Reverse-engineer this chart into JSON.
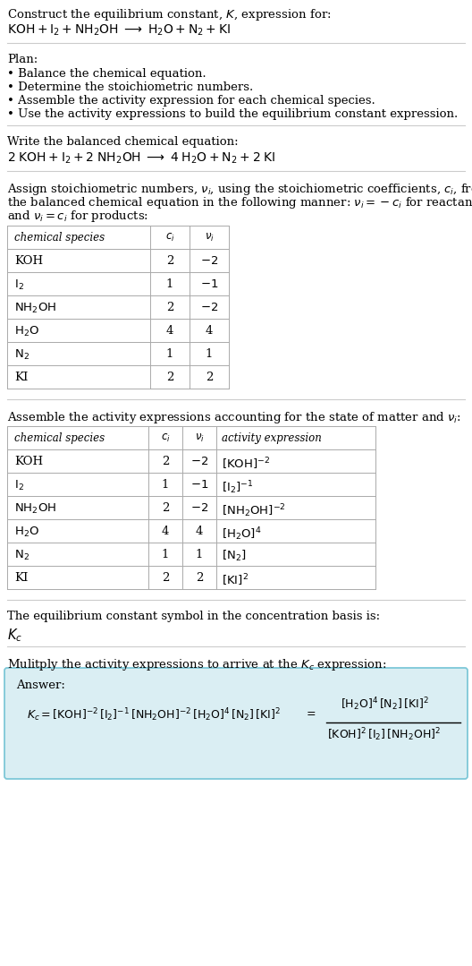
{
  "bg_color": "#ffffff",
  "text_color": "#000000",
  "title_line1": "Construct the equilibrium constant, $K$, expression for:",
  "title_line2": "$\\mathrm{KOH + I_2 + NH_2OH} \\;\\longrightarrow\\; \\mathrm{H_2O + N_2 + KI}$",
  "plan_header": "Plan:",
  "plan_items": [
    "• Balance the chemical equation.",
    "• Determine the stoichiometric numbers.",
    "• Assemble the activity expression for each chemical species.",
    "• Use the activity expressions to build the equilibrium constant expression."
  ],
  "balanced_header": "Write the balanced chemical equation:",
  "balanced_eq": "$\\mathrm{2\\;KOH + I_2 + 2\\;NH_2OH} \\;\\longrightarrow\\; \\mathrm{4\\;H_2O + N_2 + 2\\;KI}$",
  "stoich_lines": [
    "Assign stoichiometric numbers, $\\nu_i$, using the stoichiometric coefficients, $c_i$, from",
    "the balanced chemical equation in the following manner: $\\nu_i = -c_i$ for reactants",
    "and $\\nu_i = c_i$ for products:"
  ],
  "table1_cols": [
    "chemical species",
    "$c_i$",
    "$\\nu_i$"
  ],
  "table1_rows": [
    [
      "KOH",
      "2",
      "$-2$"
    ],
    [
      "$\\mathrm{I_2}$",
      "1",
      "$-1$"
    ],
    [
      "$\\mathrm{NH_2OH}$",
      "2",
      "$-2$"
    ],
    [
      "$\\mathrm{H_2O}$",
      "4",
      "4"
    ],
    [
      "$\\mathrm{N_2}$",
      "1",
      "1"
    ],
    [
      "KI",
      "2",
      "2"
    ]
  ],
  "activity_header": "Assemble the activity expressions accounting for the state of matter and $\\nu_i$:",
  "table2_cols": [
    "chemical species",
    "$c_i$",
    "$\\nu_i$",
    "activity expression"
  ],
  "table2_rows": [
    [
      "KOH",
      "2",
      "$-2$",
      "$[\\mathrm{KOH}]^{-2}$"
    ],
    [
      "$\\mathrm{I_2}$",
      "1",
      "$-1$",
      "$[\\mathrm{I_2}]^{-1}$"
    ],
    [
      "$\\mathrm{NH_2OH}$",
      "2",
      "$-2$",
      "$[\\mathrm{NH_2OH}]^{-2}$"
    ],
    [
      "$\\mathrm{H_2O}$",
      "4",
      "4",
      "$[\\mathrm{H_2O}]^{4}$"
    ],
    [
      "$\\mathrm{N_2}$",
      "1",
      "1",
      "$[\\mathrm{N_2}]$"
    ],
    [
      "KI",
      "2",
      "2",
      "$[\\mathrm{KI}]^{2}$"
    ]
  ],
  "kc_symbol_header": "The equilibrium constant symbol in the concentration basis is:",
  "kc_symbol": "$K_c$",
  "multiply_header": "Mulitply the activity expressions to arrive at the $K_c$ expression:",
  "answer_label": "Answer:",
  "answer_box_color": "#daeef3",
  "answer_box_edge": "#7ec8d8",
  "table_border_color": "#aaaaaa",
  "divider_color": "#cccccc",
  "font_size": 9.5,
  "font_size_hdr": 8.5
}
